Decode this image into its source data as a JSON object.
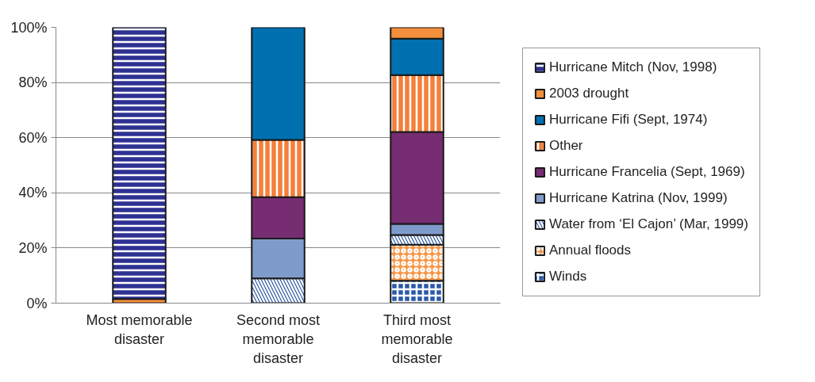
{
  "chart_data": {
    "type": "bar",
    "stacked": true,
    "categories": [
      "Most memorable disaster",
      "Second most memorable disaster",
      "Third most memorable disaster"
    ],
    "series": [
      {
        "name": "Winds",
        "color": "#2a59a8",
        "values": [
          null,
          null,
          8.1
        ]
      },
      {
        "name": "Annual floods",
        "color": "#f79646",
        "values": [
          null,
          null,
          13.1
        ]
      },
      {
        "name": "Water from ‘El Cajon’ (Mar, 1999)",
        "color": "#1f4e9c",
        "values": [
          null,
          9.0,
          3.5
        ]
      },
      {
        "name": "Hurricane Katrina (Nov, 1999)",
        "color": "#7f9bcb",
        "values": [
          null,
          14.4,
          4.0
        ]
      },
      {
        "name": "Hurricane Francelia (Sept, 1969)",
        "color": "#772d72",
        "values": [
          null,
          15.0,
          33.4
        ]
      },
      {
        "name": "Other",
        "color": "#f47f3a",
        "values": [
          null,
          20.8,
          20.6
        ]
      },
      {
        "name": "Hurricane Fifi (Sept, 1974)",
        "color": "#0070b0",
        "values": [
          null,
          40.8,
          13.2
        ]
      },
      {
        "name": "2003 drought",
        "color": "#f68f3c",
        "values": [
          1.5,
          null,
          4.1
        ]
      },
      {
        "name": "Hurricane Mitch (Nov, 1998)",
        "color": "#2e3192",
        "values": [
          98.5,
          null,
          null
        ]
      }
    ],
    "ylim": [
      0,
      100
    ],
    "yticks": [
      {
        "value": 0,
        "label": "0%"
      },
      {
        "value": 20,
        "label": "20%"
      },
      {
        "value": 40,
        "label": "40%"
      },
      {
        "value": 60,
        "label": "60%"
      },
      {
        "value": 80,
        "label": "80%"
      },
      {
        "value": 100,
        "label": "100%"
      }
    ],
    "grid": "y",
    "legend": "right"
  }
}
